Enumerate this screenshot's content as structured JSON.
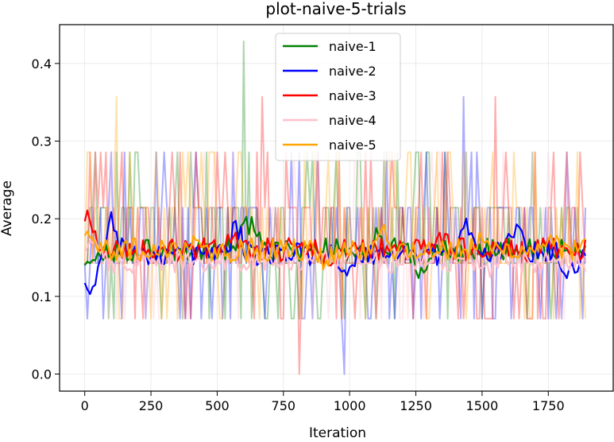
{
  "chart_data": {
    "type": "line",
    "title": "plot-naive-5-trials",
    "xlabel": "Iteration",
    "ylabel": "Average",
    "xlim": [
      -95,
      1995
    ],
    "ylim": [
      -0.022,
      0.45
    ],
    "xticks": [
      0,
      250,
      500,
      750,
      1000,
      1250,
      1500,
      1750
    ],
    "yticks": [
      0.0,
      0.1,
      0.2,
      0.3,
      0.4
    ],
    "grid": true,
    "legend_position": "top-center",
    "series": [
      {
        "name": "naive-1",
        "color": "#008000"
      },
      {
        "name": "naive-2",
        "color": "#0000ff"
      },
      {
        "name": "naive-3",
        "color": "#ff0000"
      },
      {
        "name": "naive-4",
        "color": "#ffc0cb"
      },
      {
        "name": "naive-5",
        "color": "#ffa500"
      }
    ],
    "x_step": 10,
    "x_end": 1890,
    "raw_levels": [
      0.0714,
      0.1429,
      0.2143,
      0.2857,
      0.3571,
      0.4286
    ],
    "raw_spikes": [
      {
        "series": "naive-1",
        "x": 600,
        "y": 0.4286
      },
      {
        "series": "naive-1",
        "x": 1030,
        "y": 0.2857
      },
      {
        "series": "naive-2",
        "x": 980,
        "y": 0.0
      },
      {
        "series": "naive-2",
        "x": 1430,
        "y": 0.3571
      },
      {
        "series": "naive-3",
        "x": 670,
        "y": 0.3571
      },
      {
        "series": "naive-3",
        "x": 810,
        "y": 0.0
      },
      {
        "series": "naive-3",
        "x": 1550,
        "y": 0.3571
      },
      {
        "series": "naive-5",
        "x": 120,
        "y": 0.3571
      }
    ],
    "smoothed": {
      "naive-1": {
        "start": 0.14,
        "level": 0.16,
        "end": 0.17,
        "peaks": [
          {
            "x": 600,
            "y": 0.195
          },
          {
            "x": 650,
            "y": 0.19
          },
          {
            "x": 1100,
            "y": 0.175
          }
        ],
        "dips": [
          {
            "x": 1270,
            "y": 0.13
          }
        ]
      },
      "naive-2": {
        "start": 0.145,
        "level": 0.155,
        "end": 0.14,
        "peaks": [
          {
            "x": 100,
            "y": 0.2
          },
          {
            "x": 570,
            "y": 0.19
          },
          {
            "x": 1440,
            "y": 0.195
          },
          {
            "x": 1630,
            "y": 0.2
          }
        ],
        "dips": [
          {
            "x": 20,
            "y": 0.105
          },
          {
            "x": 990,
            "y": 0.118
          },
          {
            "x": 1830,
            "y": 0.125
          }
        ]
      },
      "naive-3": {
        "start": 0.15,
        "level": 0.16,
        "end": 0.155,
        "peaks": [
          {
            "x": 10,
            "y": 0.22
          },
          {
            "x": 560,
            "y": 0.185
          },
          {
            "x": 1340,
            "y": 0.18
          }
        ],
        "dips": [
          {
            "x": 920,
            "y": 0.14
          }
        ]
      },
      "naive-4": {
        "start": 0.15,
        "level": 0.145,
        "end": 0.145,
        "peaks": [
          {
            "x": 30,
            "y": 0.17
          }
        ],
        "dips": [
          {
            "x": 1520,
            "y": 0.13
          }
        ]
      },
      "naive-5": {
        "start": 0.155,
        "level": 0.16,
        "end": 0.16,
        "peaks": [
          {
            "x": 10,
            "y": 0.19
          },
          {
            "x": 420,
            "y": 0.18
          },
          {
            "x": 1120,
            "y": 0.195
          },
          {
            "x": 1500,
            "y": 0.17
          },
          {
            "x": 1750,
            "y": 0.18
          }
        ],
        "dips": [
          {
            "x": 900,
            "y": 0.145
          }
        ]
      }
    }
  }
}
